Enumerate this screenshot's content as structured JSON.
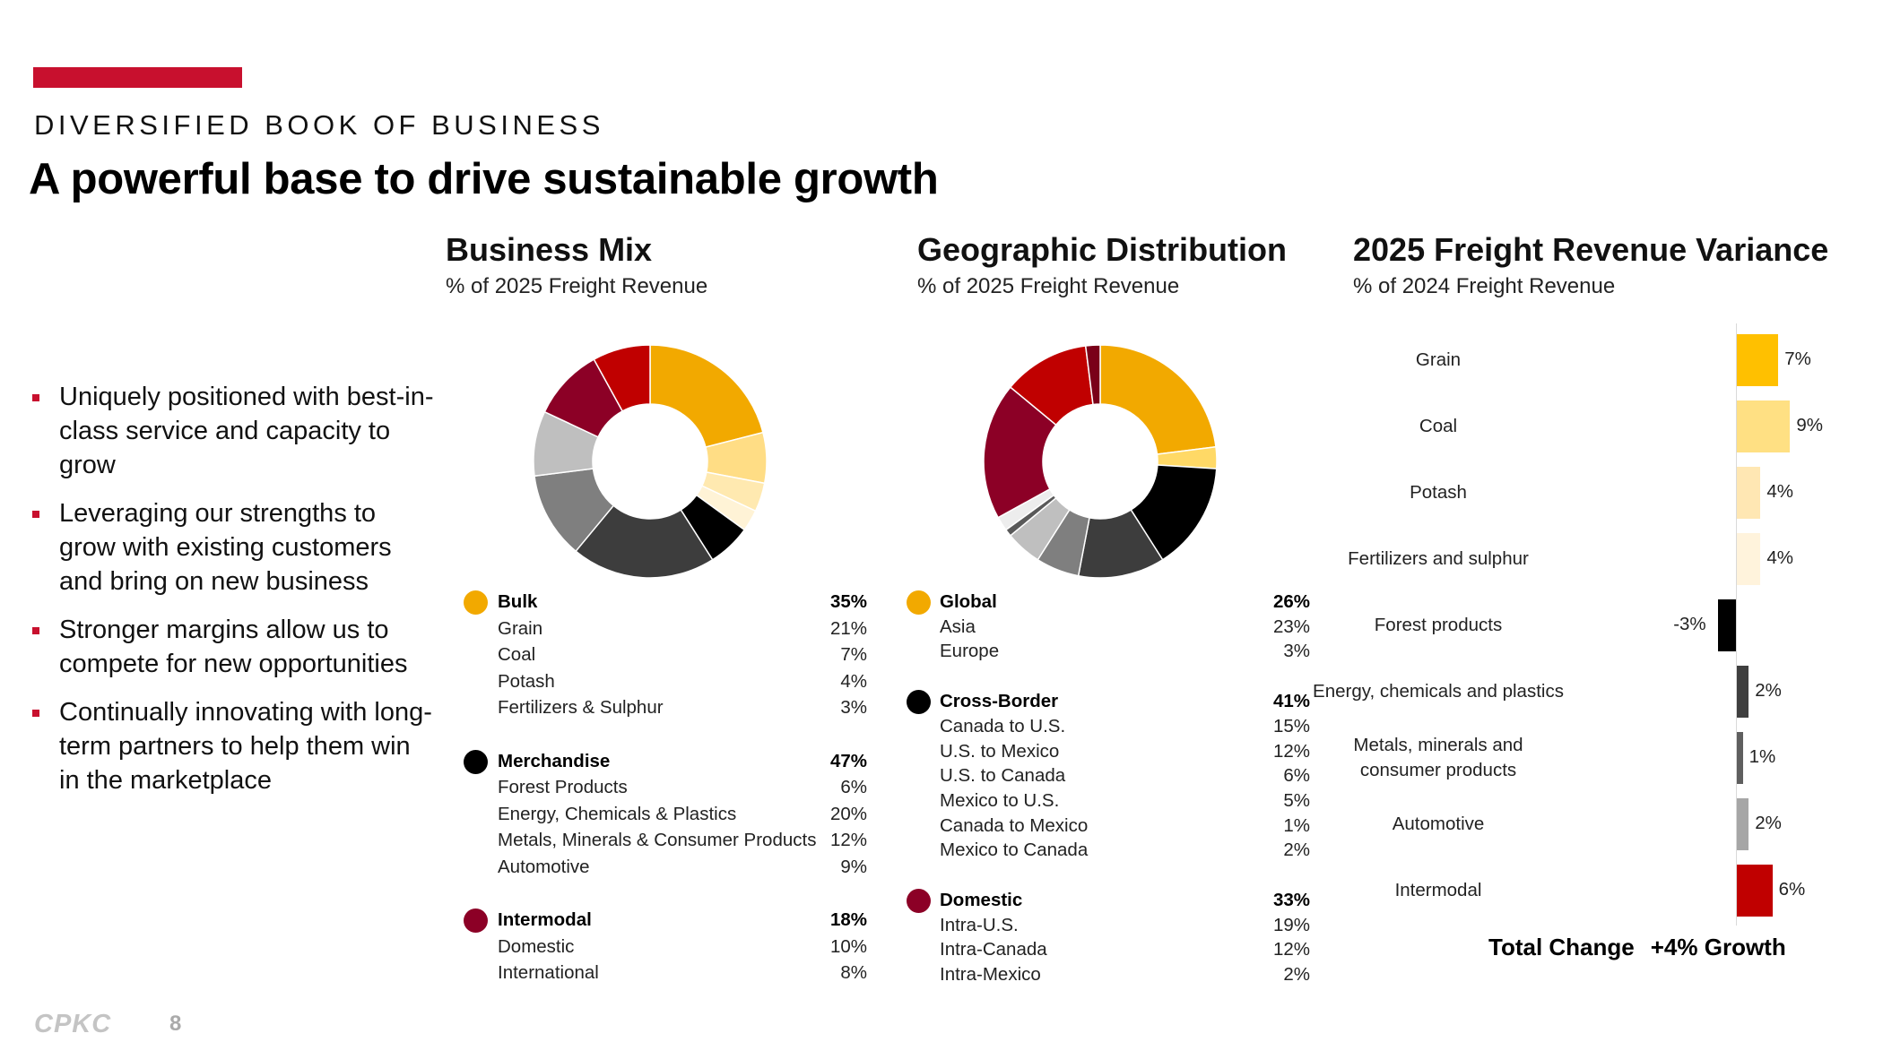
{
  "header": {
    "eyebrow": "DIVERSIFIED BOOK OF BUSINESS",
    "title": "A powerful base to drive sustainable growth"
  },
  "bullets": [
    "Uniquely positioned with best-in-class service and capacity to grow",
    "Leveraging our strengths to grow with existing customers and bring on new business",
    "Stronger margins allow us to compete for new opportunities",
    "Continually innovating with long-term partners to help them win in the marketplace"
  ],
  "sections": {
    "business_mix": {
      "title": "Business Mix",
      "subtitle": "% of 2025 Freight Revenue"
    },
    "geographic": {
      "title": "Geographic Distribution",
      "subtitle": "% of 2025 Freight Revenue"
    },
    "variance": {
      "title": "2025 Freight Revenue Variance",
      "subtitle": "% of 2024 Freight Revenue"
    }
  },
  "colors": {
    "brand_red": "#c8102e"
  },
  "chart_data": [
    {
      "type": "pie",
      "title": "Business Mix",
      "subtitle": "% of 2025 Freight Revenue",
      "groups": [
        {
          "name": "Bulk",
          "total": "35%",
          "color": "#f2a900",
          "items": [
            {
              "name": "Grain",
              "value": 21,
              "label": "21%",
              "color": "#f2a900"
            },
            {
              "name": "Coal",
              "value": 7,
              "label": "7%",
              "color": "#ffdd85"
            },
            {
              "name": "Potash",
              "value": 4,
              "label": "4%",
              "color": "#ffe9b0"
            },
            {
              "name": "Fertilizers & Sulphur",
              "value": 3,
              "label": "3%",
              "color": "#fff3d6"
            }
          ]
        },
        {
          "name": "Merchandise",
          "total": "47%",
          "color": "#000000",
          "items": [
            {
              "name": "Forest Products",
              "value": 6,
              "label": "6%",
              "color": "#000000"
            },
            {
              "name": "Energy, Chemicals & Plastics",
              "value": 20,
              "label": "20%",
              "color": "#3d3d3d"
            },
            {
              "name": "Metals, Minerals & Consumer Products",
              "value": 12,
              "label": "12%",
              "color": "#7f7f7f"
            },
            {
              "name": "Automotive",
              "value": 9,
              "label": "9%",
              "color": "#bfbfbf"
            }
          ]
        },
        {
          "name": "Intermodal",
          "total": "18%",
          "color": "#8c0026",
          "items": [
            {
              "name": "Domestic",
              "value": 10,
              "label": "10%",
              "color": "#8c0026"
            },
            {
              "name": "International",
              "value": 8,
              "label": "8%",
              "color": "#c00000"
            }
          ]
        }
      ]
    },
    {
      "type": "pie",
      "title": "Geographic Distribution",
      "subtitle": "% of 2025 Freight Revenue",
      "groups": [
        {
          "name": "Global",
          "total": "26%",
          "color": "#f2a900",
          "items": [
            {
              "name": "Asia",
              "value": 23,
              "label": "23%",
              "color": "#f2a900"
            },
            {
              "name": "Europe",
              "value": 3,
              "label": "3%",
              "color": "#ffd966"
            }
          ]
        },
        {
          "name": "Cross-Border",
          "total": "41%",
          "color": "#000000",
          "items": [
            {
              "name": "Canada to U.S.",
              "value": 15,
              "label": "15%",
              "color": "#000000"
            },
            {
              "name": "U.S. to Mexico",
              "value": 12,
              "label": "12%",
              "color": "#3d3d3d"
            },
            {
              "name": "U.S. to Canada",
              "value": 6,
              "label": "6%",
              "color": "#7f7f7f"
            },
            {
              "name": "Mexico to U.S.",
              "value": 5,
              "label": "5%",
              "color": "#bfbfbf"
            },
            {
              "name": "Canada to Mexico",
              "value": 1,
              "label": "1%",
              "color": "#595959"
            },
            {
              "name": "Mexico to Canada",
              "value": 2,
              "label": "2%",
              "color": "#ededed"
            }
          ]
        },
        {
          "name": "Domestic",
          "total": "33%",
          "color": "#8c0026",
          "items": [
            {
              "name": "Intra-U.S.",
              "value": 19,
              "label": "19%",
              "color": "#8c0026"
            },
            {
              "name": "Intra-Canada",
              "value": 12,
              "label": "12%",
              "color": "#c00000"
            },
            {
              "name": "Intra-Mexico",
              "value": 2,
              "label": "2%",
              "color": "#7a0019"
            }
          ]
        }
      ]
    },
    {
      "type": "bar",
      "orientation": "horizontal",
      "title": "2025 Freight Revenue Variance",
      "subtitle": "% of 2024 Freight Revenue",
      "categories": [
        "Grain",
        "Coal",
        "Potash",
        "Fertilizers and sulphur",
        "Forest products",
        "Energy, chemicals and plastics",
        "Metals, minerals and consumer products",
        "Automotive",
        "Intermodal"
      ],
      "category_lines": [
        [
          "Grain"
        ],
        [
          "Coal"
        ],
        [
          "Potash"
        ],
        [
          "Fertilizers and sulphur"
        ],
        [
          "Forest products"
        ],
        [
          "Energy, chemicals and plastics"
        ],
        [
          "Metals, minerals and",
          "consumer products"
        ],
        [
          "Automotive"
        ],
        [
          "Intermodal"
        ]
      ],
      "values": [
        7,
        9,
        4,
        4,
        -3,
        2,
        1,
        2,
        6
      ],
      "labels": [
        "7%",
        "9%",
        "4%",
        "4%",
        "-3%",
        "2%",
        "1%",
        "2%",
        "6%"
      ],
      "colors": [
        "#ffc000",
        "#ffe083",
        "#ffe7b3",
        "#fff3dc",
        "#000000",
        "#3f3f3f",
        "#5f5f5f",
        "#a6a6a6",
        "#c00000"
      ],
      "total_label": "Total Change",
      "total_value": "+4% Growth"
    }
  ],
  "footer": {
    "logo_text": "CPKC",
    "page_number": "8"
  }
}
